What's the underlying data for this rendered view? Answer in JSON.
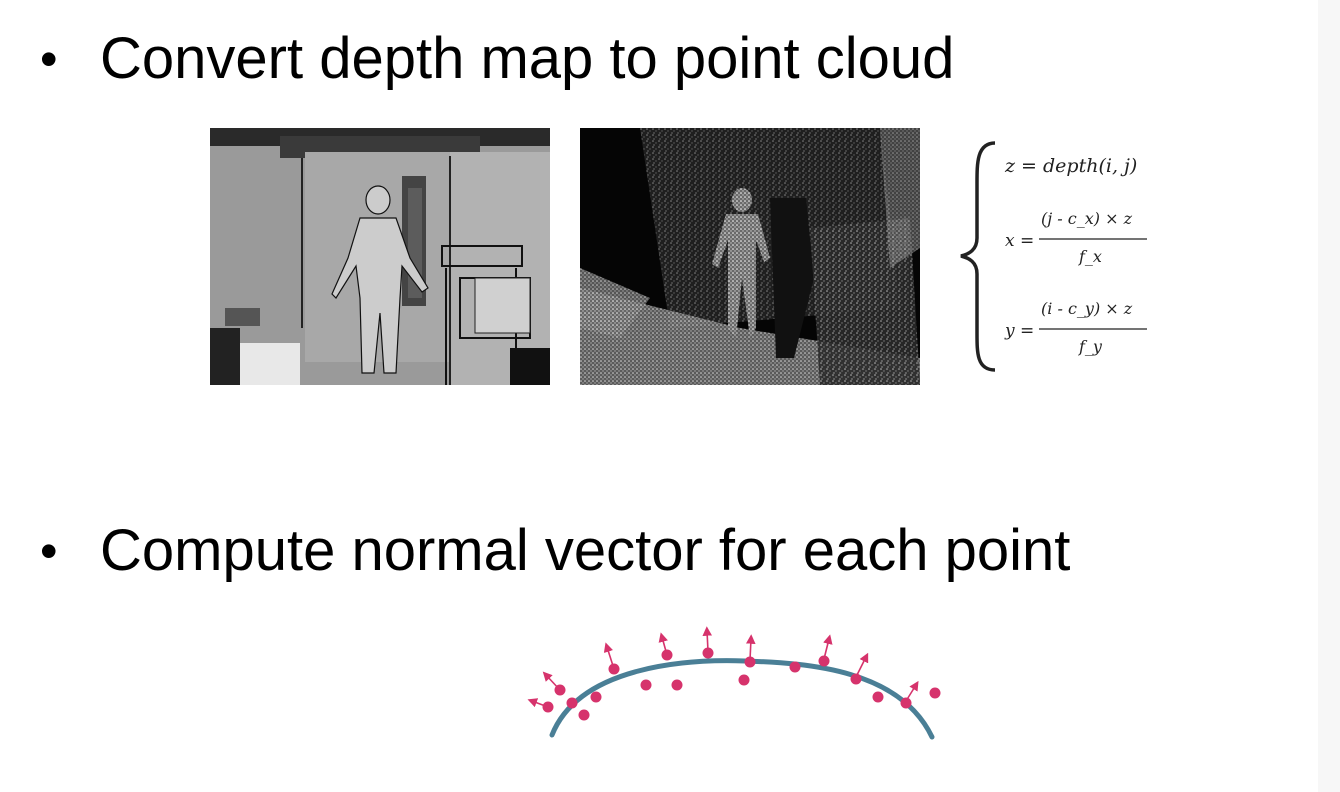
{
  "bullets": [
    {
      "text": "Convert depth map to point cloud"
    },
    {
      "text": "Compute normal vector for each point"
    }
  ],
  "formula": {
    "z_line": "z = depth(i, j)",
    "x_lhs": "x =",
    "x_num": "(j - c_x) × z",
    "x_den": "f_x",
    "y_lhs": "y =",
    "y_num": "(i - c_y) × z",
    "y_den": "f_y"
  },
  "colors": {
    "depth_background": "#9a9a9a",
    "depth_person": "#c8c8c8",
    "cloud_background": "#050505",
    "curve": "#4a7f96",
    "points": "#d6336c",
    "arrows": "#d6336c"
  },
  "icons": {
    "bullet": "bullet-dot"
  }
}
